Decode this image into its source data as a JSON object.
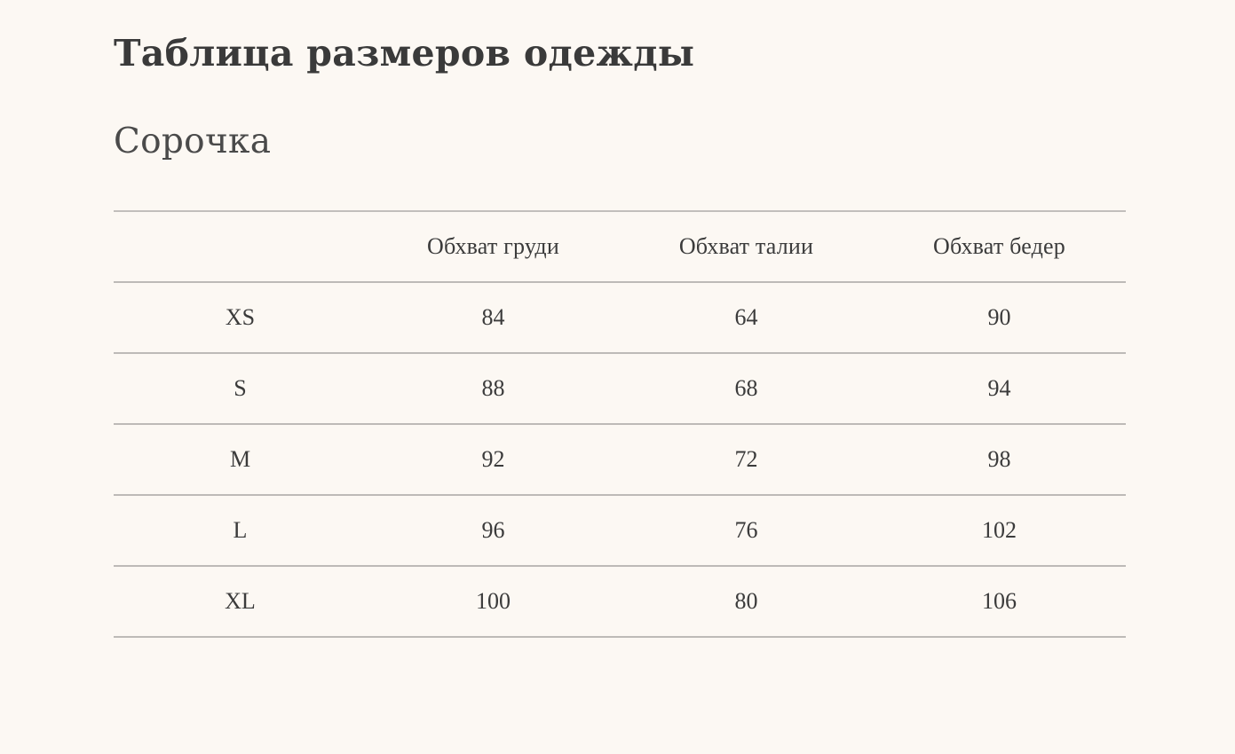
{
  "page": {
    "title": "Таблица размеров одежды",
    "subtitle": "Сорочка"
  },
  "colors": {
    "background": "#FCF8F3",
    "text": "#3B3B3B",
    "subtitle_text": "#4A4A4A",
    "divider_line": "#BDBAB7"
  },
  "chart_data": {
    "type": "table",
    "title": "Таблица размеров одежды",
    "subtitle": "Сорочка",
    "columns": [
      "",
      "Обхват груди",
      "Обхват талии",
      "Обхват бедер"
    ],
    "rows": [
      [
        "XS",
        84,
        64,
        90
      ],
      [
        "S",
        88,
        68,
        94
      ],
      [
        "M",
        92,
        72,
        98
      ],
      [
        "L",
        96,
        76,
        102
      ],
      [
        "XL",
        100,
        80,
        106
      ]
    ],
    "layout_hints": {
      "grid": "horizontal-lines-only",
      "cell_alignment": "center",
      "header_position": "top"
    }
  }
}
